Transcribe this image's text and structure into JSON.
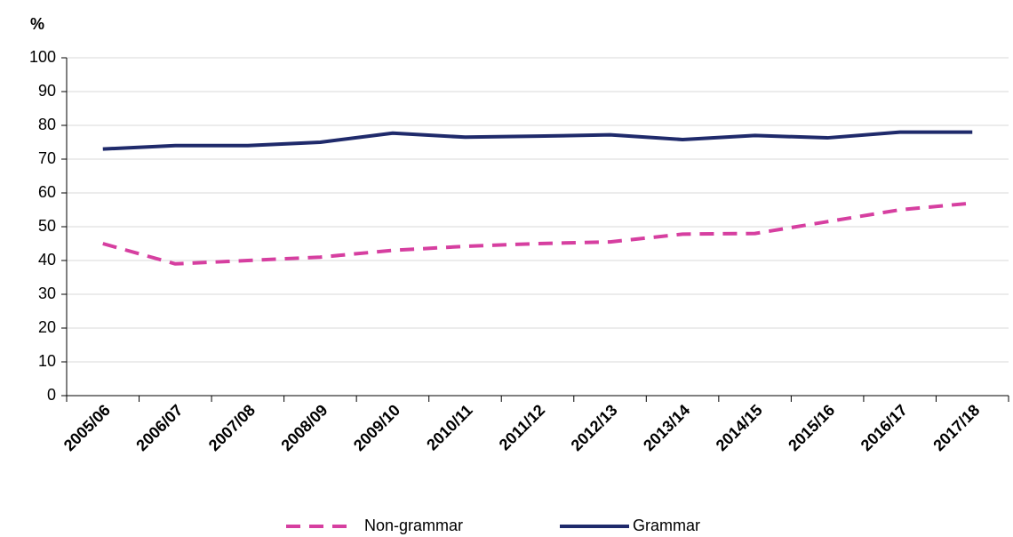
{
  "chart_data": {
    "type": "line",
    "y_axis_label": "%",
    "categories": [
      "2005/06",
      "2006/07",
      "2007/08",
      "2008/09",
      "2009/10",
      "2010/11",
      "2011/12",
      "2012/13",
      "2013/14",
      "2014/15",
      "2015/16",
      "2016/17",
      "2017/18"
    ],
    "series": [
      {
        "name": "Non-grammar",
        "color": "#d63fa0",
        "line_style": "dashed",
        "values": [
          45,
          39,
          40,
          41,
          43,
          44.2,
          45,
          45.5,
          47.8,
          48,
          51.5,
          55,
          57
        ]
      },
      {
        "name": "Grammar",
        "color": "#1f2a6b",
        "line_style": "solid",
        "values": [
          73,
          74,
          74,
          75,
          77.7,
          76.5,
          76.8,
          77.2,
          75.8,
          77,
          76.3,
          78,
          78
        ]
      }
    ],
    "ylim": [
      0,
      100
    ],
    "yticks": [
      0,
      10,
      20,
      30,
      40,
      50,
      60,
      70,
      80,
      90,
      100
    ],
    "grid": true,
    "legend": "bottom"
  }
}
